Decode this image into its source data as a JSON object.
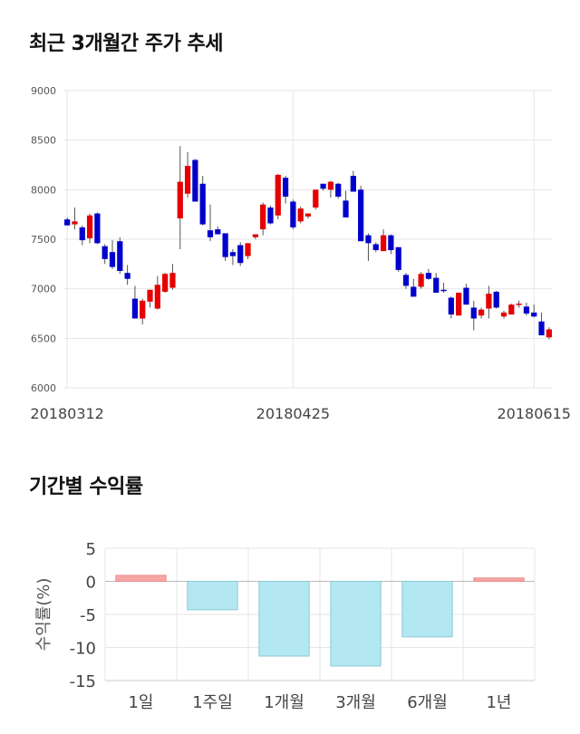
{
  "sections": {
    "price_title": "최근 3개월간 주가 추세",
    "return_title": "기간별 수익률"
  },
  "colors": {
    "up": "#e60000",
    "down": "#0000cc",
    "wick": "#555555",
    "bar_positive_fill": "#f7a6a6",
    "bar_positive_stroke": "#e88a8a",
    "bar_negative_fill": "#b3e8f2",
    "bar_negative_stroke": "#8cc9d6"
  },
  "chart_data": [
    {
      "type": "candlestick",
      "title": "최근 3개월간 주가 추세",
      "ylim": [
        6000,
        9000
      ],
      "yticks": [
        6000,
        6500,
        7000,
        7500,
        8000,
        8500,
        9000
      ],
      "xtick_labels": [
        {
          "index": 0,
          "label": "20180312"
        },
        {
          "index": 30,
          "label": "20180425"
        },
        {
          "index": 62,
          "label": "20180615"
        }
      ],
      "grid": true,
      "candles": [
        [
          7700,
          7720,
          7640,
          7640
        ],
        [
          7650,
          7820,
          7600,
          7680
        ],
        [
          7620,
          7640,
          7440,
          7490
        ],
        [
          7510,
          7760,
          7460,
          7740
        ],
        [
          7760,
          7770,
          7450,
          7460
        ],
        [
          7430,
          7450,
          7250,
          7300
        ],
        [
          7370,
          7490,
          7200,
          7220
        ],
        [
          7480,
          7520,
          7150,
          7180
        ],
        [
          7160,
          7240,
          7040,
          7100
        ],
        [
          6900,
          7030,
          6700,
          6700
        ],
        [
          6700,
          6900,
          6640,
          6880
        ],
        [
          6870,
          6990,
          6810,
          6990
        ],
        [
          6800,
          7130,
          6790,
          7040
        ],
        [
          6970,
          7160,
          6960,
          7150
        ],
        [
          7010,
          7250,
          6990,
          7160
        ],
        [
          7710,
          8440,
          7400,
          8080
        ],
        [
          7960,
          8380,
          7920,
          8240
        ],
        [
          8300,
          8310,
          7880,
          7880
        ],
        [
          8060,
          8140,
          7640,
          7650
        ],
        [
          7590,
          7850,
          7480,
          7520
        ],
        [
          7600,
          7630,
          7560,
          7550
        ],
        [
          7560,
          7560,
          7280,
          7320
        ],
        [
          7370,
          7400,
          7240,
          7330
        ],
        [
          7440,
          7470,
          7230,
          7260
        ],
        [
          7330,
          7460,
          7300,
          7460
        ],
        [
          7520,
          7550,
          7500,
          7550
        ],
        [
          7600,
          7870,
          7540,
          7850
        ],
        [
          7820,
          7840,
          7650,
          7660
        ],
        [
          7740,
          8160,
          7700,
          8150
        ],
        [
          8120,
          8140,
          7860,
          7930
        ],
        [
          7880,
          7900,
          7600,
          7620
        ],
        [
          7680,
          7830,
          7660,
          7810
        ],
        [
          7730,
          7760,
          7710,
          7760
        ],
        [
          7820,
          8000,
          7800,
          8000
        ],
        [
          8060,
          8060,
          7990,
          8010
        ],
        [
          8000,
          8090,
          7920,
          8080
        ],
        [
          8060,
          8070,
          7910,
          7930
        ],
        [
          7890,
          7990,
          7720,
          7720
        ],
        [
          8140,
          8190,
          7980,
          7980
        ],
        [
          8000,
          8040,
          7480,
          7480
        ],
        [
          7540,
          7560,
          7280,
          7460
        ],
        [
          7450,
          7470,
          7370,
          7390
        ],
        [
          7380,
          7600,
          7380,
          7540
        ],
        [
          7540,
          7550,
          7350,
          7390
        ],
        [
          7420,
          7420,
          7170,
          7190
        ],
        [
          7140,
          7160,
          7000,
          7030
        ],
        [
          7020,
          7100,
          6920,
          6920
        ],
        [
          7020,
          7170,
          7000,
          7150
        ],
        [
          7160,
          7200,
          7090,
          7100
        ],
        [
          7110,
          7160,
          6960,
          6960
        ],
        [
          6990,
          7060,
          6960,
          6980
        ],
        [
          6910,
          6920,
          6700,
          6740
        ],
        [
          6730,
          6960,
          6730,
          6960
        ],
        [
          7010,
          7050,
          6840,
          6840
        ],
        [
          6810,
          6880,
          6580,
          6700
        ],
        [
          6730,
          6810,
          6700,
          6790
        ],
        [
          6800,
          7030,
          6700,
          6950
        ],
        [
          6970,
          6980,
          6800,
          6810
        ],
        [
          6720,
          6780,
          6700,
          6760
        ],
        [
          6740,
          6850,
          6740,
          6840
        ],
        [
          6840,
          6880,
          6810,
          6850
        ],
        [
          6820,
          6860,
          6730,
          6750
        ],
        [
          6760,
          6840,
          6710,
          6720
        ],
        [
          6670,
          6760,
          6530,
          6530
        ],
        [
          6510,
          6610,
          6490,
          6590
        ]
      ]
    },
    {
      "type": "bar",
      "title": "기간별 수익률",
      "ylabel": "수익률(%)",
      "categories": [
        "1일",
        "1주일",
        "1개월",
        "3개월",
        "6개월",
        "1년"
      ],
      "values": [
        0.9,
        -4.3,
        -11.3,
        -12.8,
        -8.4,
        0.5
      ],
      "ylim": [
        -15,
        5
      ],
      "yticks": [
        5,
        0,
        -5,
        -10,
        -15
      ],
      "grid": true
    }
  ]
}
